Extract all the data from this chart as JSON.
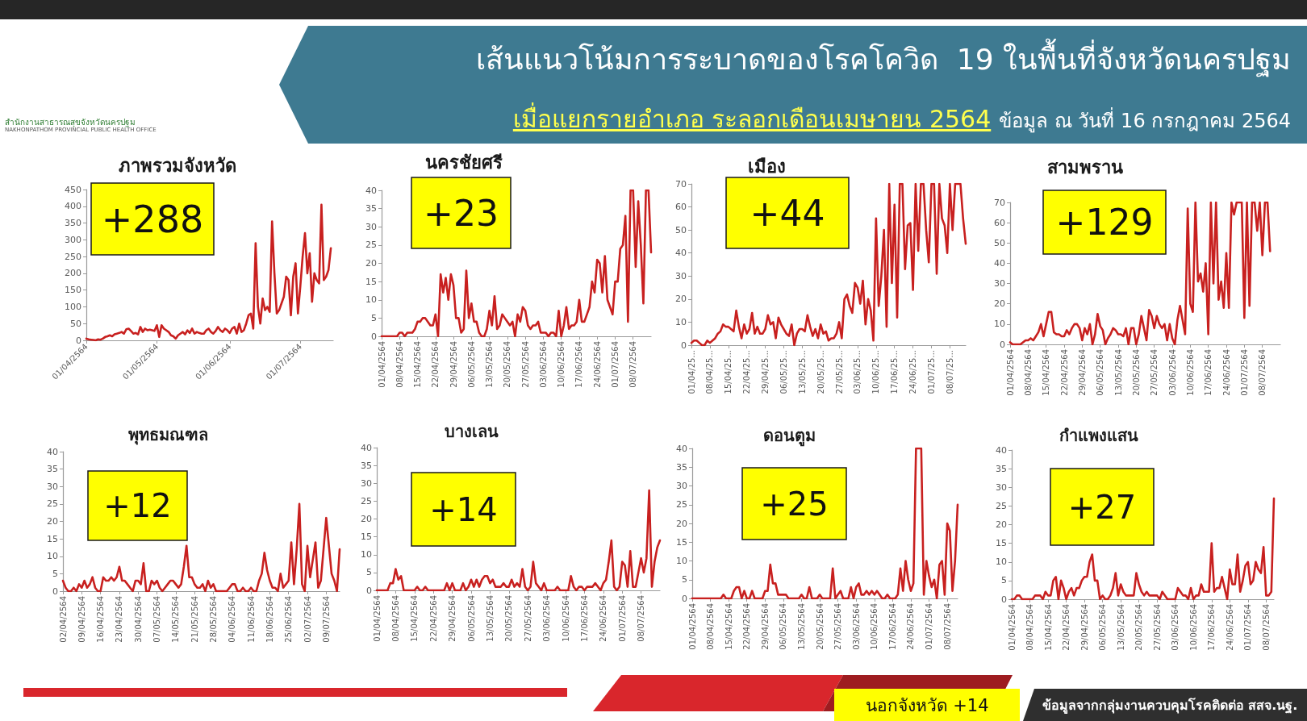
{
  "chart_data": [
    {
      "type": "other",
      "title": "เส้นแนวโน้มการระบาดของโรคโควิด  19 ในพื้นที่จังหวัดนครปฐม",
      "subtitle": "เมื่อแยกรายอำเภอ ระลอกเดือนเมษายน 2564",
      "annotations": [
        "ข้อมูล ณ วันที่ 16 กรกฎาคม 2564",
        "สำนักงานสาธารณสุขจังหวัดนครปฐม",
        "NAKHONPATHOM PROVINCIAL PUBLIC HEALTH OFFICE"
      ]
    },
    {
      "type": "line",
      "title": "ภาพรวมจังหวัด",
      "annotations": [
        "+288"
      ],
      "color": "#c8201f",
      "ylim": [
        0,
        450
      ],
      "yticks": [
        0,
        50,
        100,
        150,
        200,
        250,
        300,
        350,
        400,
        450
      ],
      "categories": [
        "01/04/2564",
        null,
        null,
        null,
        null,
        null,
        null,
        null,
        null,
        null,
        null,
        null,
        null,
        null,
        null,
        null,
        null,
        null,
        null,
        null,
        null,
        null,
        null,
        null,
        null,
        null,
        null,
        null,
        null,
        null,
        "01/05/2564",
        null,
        null,
        null,
        null,
        null,
        null,
        null,
        null,
        null,
        null,
        null,
        null,
        null,
        null,
        null,
        null,
        null,
        null,
        null,
        null,
        null,
        null,
        null,
        null,
        null,
        null,
        null,
        null,
        null,
        null,
        "01/06/2564",
        null,
        null,
        null,
        null,
        null,
        null,
        null,
        null,
        null,
        null,
        null,
        null,
        null,
        null,
        null,
        null,
        null,
        null,
        null,
        null,
        null,
        null,
        null,
        null,
        null,
        null,
        null,
        null,
        null,
        "01/07/2564",
        null,
        null,
        null,
        null,
        null,
        null,
        null,
        null,
        null,
        null,
        null,
        null,
        null,
        null
      ],
      "values": [
        5,
        3,
        2,
        1,
        0,
        3,
        2,
        5,
        10,
        12,
        15,
        12,
        18,
        20,
        22,
        25,
        20,
        33,
        35,
        28,
        20,
        22,
        18,
        40,
        25,
        35,
        30,
        32,
        30,
        28,
        45,
        10,
        45,
        35,
        30,
        25,
        15,
        12,
        5,
        15,
        20,
        25,
        18,
        30,
        22,
        35,
        20,
        25,
        22,
        20,
        20,
        30,
        35,
        25,
        20,
        28,
        40,
        30,
        25,
        35,
        30,
        22,
        35,
        40,
        20,
        50,
        25,
        30,
        50,
        75,
        80,
        35,
        290,
        100,
        50,
        125,
        90,
        100,
        85,
        355,
        200,
        80,
        90,
        110,
        130,
        190,
        180,
        75,
        190,
        230,
        80,
        160,
        250,
        320,
        200,
        260,
        115,
        200,
        180,
        170,
        405,
        180,
        190,
        210,
        275,
        null
      ]
    },
    {
      "type": "line",
      "title": "นครชัยศรี",
      "annotations": [
        "+23"
      ],
      "color": "#c8201f",
      "ylim": [
        0,
        40
      ],
      "yticks": [
        0,
        5,
        10,
        15,
        20,
        25,
        30,
        35,
        40
      ],
      "categories": [
        "01/04/2564",
        null,
        null,
        null,
        null,
        null,
        null,
        "08/04/2564",
        null,
        null,
        null,
        null,
        null,
        null,
        "15/04/2564",
        null,
        null,
        null,
        null,
        null,
        null,
        "22/04/2564",
        null,
        null,
        null,
        null,
        null,
        null,
        "29/04/2564",
        null,
        null,
        null,
        null,
        null,
        null,
        "06/05/2564",
        null,
        null,
        null,
        null,
        null,
        null,
        "13/05/2564",
        null,
        null,
        null,
        null,
        null,
        null,
        "20/05/2564",
        null,
        null,
        null,
        null,
        null,
        null,
        "27/05/2564",
        null,
        null,
        null,
        null,
        null,
        null,
        "03/06/2564",
        null,
        null,
        null,
        null,
        null,
        null,
        "10/06/2564",
        null,
        null,
        null,
        null,
        null,
        null,
        "17/06/2564",
        null,
        null,
        null,
        null,
        null,
        null,
        "24/06/2564",
        null,
        null,
        null,
        null,
        null,
        null,
        "01/07/2564",
        null,
        null,
        null,
        null,
        null,
        null,
        "08/07/2564",
        null,
        null,
        null,
        null,
        null,
        null,
        null
      ],
      "values": [
        0,
        0,
        0,
        0,
        0,
        0,
        0,
        1,
        1,
        0,
        1,
        1,
        1,
        2,
        4,
        4,
        5,
        5,
        4,
        3,
        3,
        6,
        0,
        17,
        12,
        16,
        10,
        17,
        14,
        5,
        5,
        1,
        2,
        18,
        5,
        9,
        4,
        4,
        1,
        0,
        0,
        2,
        7,
        3,
        11,
        2,
        3,
        6,
        5,
        4,
        3,
        4,
        0,
        6,
        4,
        8,
        7,
        3,
        2,
        3,
        3,
        4,
        1,
        1,
        1,
        0,
        1,
        1,
        0,
        7,
        0,
        3,
        8,
        2,
        3,
        3,
        4,
        10,
        4,
        4,
        6,
        8,
        15,
        12,
        21,
        20,
        12,
        22,
        10,
        8,
        6,
        15,
        15,
        24,
        25,
        33,
        4,
        40,
        40,
        19,
        37,
        25,
        9,
        40,
        40,
        23
      ]
    },
    {
      "type": "line",
      "title": "เมือง",
      "annotations": [
        "+44"
      ],
      "color": "#c8201f",
      "ylim": [
        0,
        70
      ],
      "yticks": [
        0,
        10,
        20,
        30,
        40,
        50,
        60,
        70
      ],
      "categories": [
        "01/04/25...",
        null,
        null,
        null,
        null,
        null,
        null,
        "08/04/25...",
        null,
        null,
        null,
        null,
        null,
        null,
        "15/04/25...",
        null,
        null,
        null,
        null,
        null,
        null,
        "22/04/25...",
        null,
        null,
        null,
        null,
        null,
        null,
        "29/04/25...",
        null,
        null,
        null,
        null,
        null,
        null,
        "06/05/25...",
        null,
        null,
        null,
        null,
        null,
        null,
        "13/05/25...",
        null,
        null,
        null,
        null,
        null,
        null,
        "20/05/25...",
        null,
        null,
        null,
        null,
        null,
        null,
        "27/05/25...",
        null,
        null,
        null,
        null,
        null,
        null,
        "03/06/25...",
        null,
        null,
        null,
        null,
        null,
        null,
        "10/06/25...",
        null,
        null,
        null,
        null,
        null,
        null,
        "17/06/25...",
        null,
        null,
        null,
        null,
        null,
        null,
        "24/06/25...",
        null,
        null,
        null,
        null,
        null,
        null,
        "01/07/25...",
        null,
        null,
        null,
        null,
        null,
        null,
        "08/07/25...",
        null,
        null,
        null,
        null,
        null,
        null
      ],
      "values": [
        1,
        2,
        2,
        1,
        0,
        0,
        2,
        1,
        2,
        3,
        5,
        6,
        9,
        8,
        8,
        7,
        6,
        15,
        8,
        3,
        9,
        5,
        7,
        14,
        5,
        8,
        5,
        5,
        7,
        13,
        9,
        10,
        3,
        12,
        9,
        7,
        5,
        4,
        9,
        0,
        5,
        7,
        7,
        6,
        13,
        8,
        4,
        7,
        3,
        9,
        5,
        6,
        2,
        3,
        3,
        5,
        10,
        3,
        20,
        22,
        17,
        14,
        27,
        25,
        18,
        28,
        9,
        20,
        15,
        2,
        55,
        17,
        30,
        50,
        8,
        70,
        27,
        61,
        12,
        70,
        70,
        33,
        52,
        53,
        24,
        70,
        41,
        70,
        70,
        50,
        36,
        70,
        70,
        31,
        70,
        55,
        52,
        40,
        70,
        50,
        70,
        70,
        70,
        55,
        44
      ]
    },
    {
      "type": "line",
      "title": "สามพราน",
      "annotations": [
        "+129"
      ],
      "color": "#c8201f",
      "ylim": [
        0,
        70
      ],
      "yticks": [
        0,
        10,
        20,
        30,
        40,
        50,
        60,
        70
      ],
      "categories": [
        "01/04/2564",
        null,
        null,
        null,
        null,
        null,
        null,
        "08/04/2564",
        null,
        null,
        null,
        null,
        null,
        null,
        "15/04/2564",
        null,
        null,
        null,
        null,
        null,
        null,
        "22/04/2564",
        null,
        null,
        null,
        null,
        null,
        null,
        "29/04/2564",
        null,
        null,
        null,
        null,
        null,
        null,
        "06/05/2564",
        null,
        null,
        null,
        null,
        null,
        null,
        "13/05/2564",
        null,
        null,
        null,
        null,
        null,
        null,
        "20/05/2564",
        null,
        null,
        null,
        null,
        null,
        null,
        "27/05/2564",
        null,
        null,
        null,
        null,
        null,
        null,
        "03/06/2564",
        null,
        null,
        null,
        null,
        null,
        null,
        "10/06/2564",
        null,
        null,
        null,
        null,
        null,
        null,
        "17/06/2564",
        null,
        null,
        null,
        null,
        null,
        null,
        "24/06/2564",
        null,
        null,
        null,
        null,
        null,
        null,
        "01/07/2564",
        null,
        null,
        null,
        null,
        null,
        null,
        "08/07/2564",
        null,
        null,
        null,
        null,
        null,
        null,
        null
      ],
      "values": [
        1,
        0,
        0,
        0,
        0,
        1,
        2,
        2,
        3,
        2,
        4,
        6,
        10,
        4,
        10,
        16,
        16,
        6,
        5,
        5,
        4,
        4,
        7,
        5,
        8,
        10,
        10,
        8,
        2,
        8,
        5,
        10,
        0,
        5,
        15,
        9,
        7,
        0,
        3,
        5,
        8,
        7,
        5,
        5,
        4,
        8,
        0,
        8,
        8,
        0,
        5,
        14,
        8,
        2,
        17,
        14,
        8,
        14,
        10,
        8,
        10,
        2,
        10,
        3,
        0,
        12,
        19,
        12,
        5,
        67,
        20,
        16,
        70,
        31,
        35,
        26,
        40,
        5,
        70,
        30,
        70,
        22,
        31,
        18,
        45,
        18,
        70,
        64,
        70,
        70,
        70,
        13,
        70,
        19,
        70,
        70,
        56,
        70,
        44,
        70,
        70,
        46,
        null,
        null,
        null,
        null
      ]
    },
    {
      "type": "line",
      "title": "พุทธมณฑล",
      "annotations": [
        "+12"
      ],
      "color": "#c8201f",
      "ylim": [
        0,
        40
      ],
      "yticks": [
        0,
        5,
        10,
        15,
        20,
        25,
        30,
        35,
        40
      ],
      "categories": [
        "02/04/2564",
        null,
        null,
        null,
        null,
        null,
        null,
        "09/04/2564",
        null,
        null,
        null,
        null,
        null,
        null,
        "16/04/2564",
        null,
        null,
        null,
        null,
        null,
        null,
        "23/04/2564",
        null,
        null,
        null,
        null,
        null,
        null,
        "30/04/2564",
        null,
        null,
        null,
        null,
        null,
        null,
        "07/05/2564",
        null,
        null,
        null,
        null,
        null,
        null,
        "14/05/2564",
        null,
        null,
        null,
        null,
        null,
        null,
        "21/05/2564",
        null,
        null,
        null,
        null,
        null,
        null,
        "28/05/2564",
        null,
        null,
        null,
        null,
        null,
        null,
        "04/06/2564",
        null,
        null,
        null,
        null,
        null,
        null,
        "11/06/2564",
        null,
        null,
        null,
        null,
        null,
        null,
        "18/06/2564",
        null,
        null,
        null,
        null,
        null,
        null,
        "25/06/2564",
        null,
        null,
        null,
        null,
        null,
        null,
        "02/07/2564",
        null,
        null,
        null,
        null,
        null,
        null,
        "09/07/2564",
        null,
        null,
        null,
        null,
        null
      ],
      "values": [
        3,
        1,
        0,
        0,
        1,
        0,
        2,
        1,
        3,
        1,
        2,
        4,
        1,
        0,
        0,
        4,
        3,
        3,
        4,
        3,
        4,
        7,
        3,
        3,
        2,
        1,
        0,
        3,
        3,
        2,
        8,
        0,
        0,
        3,
        2,
        3,
        1,
        0,
        1,
        2,
        3,
        3,
        2,
        1,
        2,
        7,
        13,
        4,
        4,
        2,
        1,
        1,
        2,
        0,
        3,
        1,
        2,
        0,
        0,
        0,
        0,
        0,
        1,
        2,
        2,
        0,
        0,
        1,
        0,
        0,
        1,
        0,
        0,
        3,
        5,
        11,
        6,
        3,
        1,
        1,
        0,
        5,
        1,
        2,
        3,
        14,
        2,
        12,
        25,
        2,
        0,
        13,
        4,
        9,
        14,
        1,
        3,
        12,
        21,
        13,
        5,
        3,
        0,
        12
      ]
    },
    {
      "type": "line",
      "title": "บางเลน",
      "annotations": [
        "+14"
      ],
      "color": "#c8201f",
      "ylim": [
        0,
        40
      ],
      "yticks": [
        0,
        5,
        10,
        15,
        20,
        25,
        30,
        35,
        40
      ],
      "categories": [
        "01/04/2564",
        null,
        null,
        null,
        null,
        null,
        null,
        "08/04/2564",
        null,
        null,
        null,
        null,
        null,
        null,
        "15/04/2564",
        null,
        null,
        null,
        null,
        null,
        null,
        "22/04/2564",
        null,
        null,
        null,
        null,
        null,
        null,
        "29/04/2564",
        null,
        null,
        null,
        null,
        null,
        null,
        "06/05/2564",
        null,
        null,
        null,
        null,
        null,
        null,
        "13/05/2564",
        null,
        null,
        null,
        null,
        null,
        null,
        "20/05/2564",
        null,
        null,
        null,
        null,
        null,
        null,
        "27/05/2564",
        null,
        null,
        null,
        null,
        null,
        null,
        "03/06/2564",
        null,
        null,
        null,
        null,
        null,
        null,
        "10/06/2564",
        null,
        null,
        null,
        null,
        null,
        null,
        "17/06/2564",
        null,
        null,
        null,
        null,
        null,
        null,
        "24/06/2564",
        null,
        null,
        null,
        null,
        null,
        null,
        "01/07/2564",
        null,
        null,
        null,
        null,
        null,
        null,
        "08/07/2564",
        null,
        null,
        null,
        null,
        null,
        null,
        null
      ],
      "values": [
        0,
        0,
        0,
        0,
        0,
        2,
        2,
        6,
        3,
        4,
        0,
        0,
        0,
        0,
        0,
        1,
        0,
        0,
        1,
        0,
        0,
        0,
        0,
        0,
        0,
        0,
        2,
        0,
        2,
        0,
        0,
        0,
        2,
        0,
        1,
        3,
        1,
        3,
        1,
        3,
        4,
        4,
        2,
        3,
        1,
        1,
        1,
        2,
        1,
        1,
        3,
        1,
        2,
        1,
        6,
        1,
        0,
        1,
        8,
        2,
        1,
        0,
        2,
        0,
        0,
        0,
        0,
        1,
        0,
        0,
        0,
        0,
        4,
        1,
        0,
        1,
        1,
        0,
        1,
        1,
        1,
        2,
        1,
        0,
        2,
        3,
        8,
        14,
        1,
        0,
        1,
        8,
        7,
        1,
        11,
        1,
        1,
        5,
        9,
        5,
        9,
        28,
        1,
        8,
        12,
        14
      ]
    },
    {
      "type": "line",
      "title": "ดอนตูม",
      "annotations": [
        "+25"
      ],
      "color": "#c8201f",
      "ylim": [
        0,
        40
      ],
      "yticks": [
        0,
        5,
        10,
        15,
        20,
        25,
        30,
        35,
        40
      ],
      "categories": [
        "01/04/2564",
        null,
        null,
        null,
        null,
        null,
        null,
        "08/04/2564",
        null,
        null,
        null,
        null,
        null,
        null,
        "15/04/2564",
        null,
        null,
        null,
        null,
        null,
        null,
        "22/04/2564",
        null,
        null,
        null,
        null,
        null,
        null,
        "29/04/2564",
        null,
        null,
        null,
        null,
        null,
        null,
        "06/05/2564",
        null,
        null,
        null,
        null,
        null,
        null,
        "13/05/2564",
        null,
        null,
        null,
        null,
        null,
        null,
        "20/05/2564",
        null,
        null,
        null,
        null,
        null,
        null,
        "27/05/2564",
        null,
        null,
        null,
        null,
        null,
        null,
        "03/06/2564",
        null,
        null,
        null,
        null,
        null,
        null,
        "10/06/2564",
        null,
        null,
        null,
        null,
        null,
        null,
        "17/06/2564",
        null,
        null,
        null,
        null,
        null,
        null,
        "24/06/2564",
        null,
        null,
        null,
        null,
        null,
        null,
        "01/07/2564",
        null,
        null,
        null,
        null,
        null,
        null,
        "08/07/2564",
        null,
        null,
        null,
        null
      ],
      "values": [
        0,
        0,
        0,
        0,
        0,
        0,
        0,
        0,
        0,
        0,
        0,
        0,
        1,
        0,
        0,
        0,
        2,
        3,
        3,
        0,
        2,
        0,
        0,
        2,
        0,
        0,
        0,
        0,
        2,
        2,
        9,
        4,
        4,
        1,
        1,
        1,
        1,
        0,
        0,
        0,
        0,
        0,
        1,
        0,
        0,
        3,
        0,
        0,
        0,
        1,
        0,
        0,
        0,
        0,
        8,
        0,
        1,
        2,
        0,
        0,
        0,
        3,
        0,
        3,
        4,
        1,
        1,
        2,
        1,
        2,
        1,
        2,
        1,
        0,
        0,
        1,
        0,
        0,
        0,
        1,
        8,
        2,
        10,
        5,
        2,
        4,
        40,
        40,
        40,
        1,
        10,
        6,
        3,
        5,
        0,
        9,
        10,
        1,
        20,
        18,
        2,
        10,
        25
      ]
    },
    {
      "type": "line",
      "title": "กำแพงแสน",
      "annotations": [
        "+27"
      ],
      "color": "#c8201f",
      "ylim": [
        0,
        40
      ],
      "yticks": [
        0,
        5,
        10,
        15,
        20,
        25,
        30,
        35,
        40
      ],
      "categories": [
        "01/04/2564",
        null,
        null,
        null,
        null,
        null,
        null,
        "08/04/2564",
        null,
        null,
        null,
        null,
        null,
        null,
        "15/04/2564",
        null,
        null,
        null,
        null,
        null,
        null,
        "22/04/2564",
        null,
        null,
        null,
        null,
        null,
        null,
        "29/04/2564",
        null,
        null,
        null,
        null,
        null,
        null,
        "06/05/2564",
        null,
        null,
        null,
        null,
        null,
        null,
        "13/05/2564",
        null,
        null,
        null,
        null,
        null,
        null,
        "20/05/2564",
        null,
        null,
        null,
        null,
        null,
        null,
        "27/05/2564",
        null,
        null,
        null,
        null,
        null,
        null,
        "03/06/2564",
        null,
        null,
        null,
        null,
        null,
        null,
        "10/06/2564",
        null,
        null,
        null,
        null,
        null,
        null,
        "17/06/2564",
        null,
        null,
        null,
        null,
        null,
        null,
        "24/06/2564",
        null,
        null,
        null,
        null,
        null,
        null,
        "01/07/2564",
        null,
        null,
        null,
        null,
        null,
        null,
        "08/07/2564",
        null,
        null,
        null
      ],
      "values": [
        0,
        0,
        1,
        1,
        0,
        0,
        0,
        0,
        0,
        1,
        1,
        1,
        0,
        2,
        1,
        1,
        5,
        6,
        0,
        5,
        3,
        0,
        2,
        3,
        1,
        3,
        3,
        5,
        6,
        6,
        10,
        12,
        5,
        5,
        0,
        1,
        0,
        0,
        1,
        3,
        7,
        1,
        4,
        2,
        1,
        1,
        1,
        1,
        7,
        4,
        2,
        1,
        2,
        1,
        1,
        1,
        1,
        0,
        2,
        1,
        0,
        0,
        0,
        0,
        3,
        2,
        1,
        1,
        0,
        3,
        0,
        1,
        1,
        4,
        2,
        2,
        2,
        15,
        2,
        3,
        3,
        6,
        3,
        0,
        8,
        4,
        4,
        12,
        2,
        5,
        9,
        10,
        4,
        5,
        10,
        8,
        7,
        14,
        1,
        1,
        2,
        27
      ]
    },
    {
      "type": "other",
      "annotations": [
        "นอกจังหวัด +14",
        "ข้อมูลจากกลุ่มงานควบคุมโรคติดต่อ สสจ.นฐ."
      ]
    }
  ]
}
